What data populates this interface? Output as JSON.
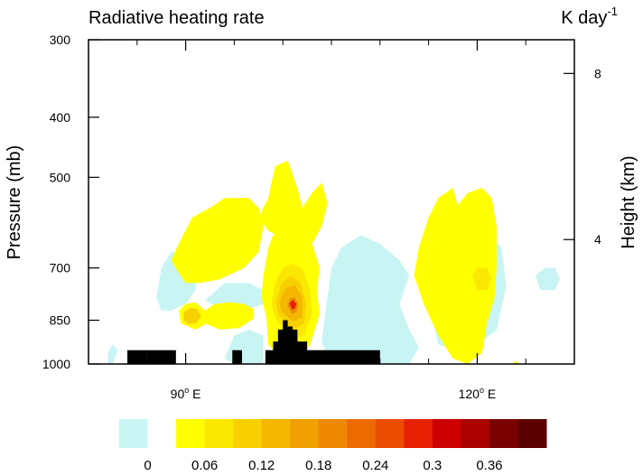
{
  "chart_data": {
    "type": "heatmap",
    "title": "Radiative heating rate",
    "units_label": "K day",
    "units_exponent": "-1",
    "ylabel_left": "Pressure (mb)",
    "ylabel_right": "Height (km)",
    "y_scale": "log",
    "y_range_mb": [
      1000,
      300
    ],
    "x_range_deg": [
      80,
      130
    ],
    "x_ticks": [
      {
        "lon": 90,
        "label": "90",
        "suffix": "E"
      },
      {
        "lon": 120,
        "label": "120",
        "suffix": "E"
      }
    ],
    "x_minor_ticks": [
      85,
      95,
      100,
      105,
      110,
      115,
      125,
      130
    ],
    "left_ticks": [
      {
        "value": 300,
        "label": "300"
      },
      {
        "value": 400,
        "label": "400"
      },
      {
        "value": 500,
        "label": "500"
      },
      {
        "value": 700,
        "label": "700"
      },
      {
        "value": 850,
        "label": "850"
      },
      {
        "value": 1000,
        "label": "1000"
      }
    ],
    "right_ticks": [
      {
        "pressure_mb": 340,
        "label": "8"
      },
      {
        "pressure_mb": 630,
        "label": "4"
      }
    ],
    "colorbar": {
      "colors": [
        "#c8f4f4",
        "#ffffff",
        "#ffff00",
        "#fbe800",
        "#f8d000",
        "#f4b800",
        "#f0a000",
        "#ee8800",
        "#ec6a00",
        "#ea4c00",
        "#e62000",
        "#cc0000",
        "#aa0000",
        "#7a0000",
        "#5a0000"
      ],
      "labels": [
        "0",
        "0.06",
        "0.12",
        "0.18",
        "0.24",
        "0.3",
        "0.36"
      ],
      "label_boundaries": [
        1,
        3,
        5,
        7,
        9,
        11,
        13
      ]
    },
    "regions": [
      {
        "level": 0,
        "points": [
          [
            82.5,
            1000
          ],
          [
            83,
            950
          ],
          [
            82.5,
            930
          ],
          [
            82,
            960
          ],
          [
            82,
            1000
          ]
        ]
      },
      {
        "level": 0,
        "points": [
          [
            87,
            780
          ],
          [
            87.5,
            700
          ],
          [
            88.5,
            660
          ],
          [
            90,
            660
          ],
          [
            91,
            700
          ],
          [
            91,
            760
          ],
          [
            90,
            800
          ],
          [
            88.5,
            820
          ],
          [
            87.5,
            820
          ]
        ]
      },
      {
        "level": 0,
        "points": [
          [
            92,
            790
          ],
          [
            94,
            740
          ],
          [
            96.5,
            740
          ],
          [
            98,
            760
          ],
          [
            98,
            800
          ],
          [
            96,
            820
          ],
          [
            94,
            820
          ]
        ]
      },
      {
        "level": 0,
        "points": [
          [
            94,
            980
          ],
          [
            95,
            900
          ],
          [
            96.5,
            880
          ],
          [
            98,
            900
          ],
          [
            98,
            1000
          ],
          [
            95,
            1000
          ]
        ]
      },
      {
        "level": 0,
        "points": [
          [
            104.5,
            800
          ],
          [
            105,
            700
          ],
          [
            106,
            650
          ],
          [
            108,
            620
          ],
          [
            110,
            640
          ],
          [
            112,
            680
          ],
          [
            113,
            720
          ],
          [
            112,
            800
          ],
          [
            113,
            880
          ],
          [
            114,
            940
          ],
          [
            113,
            1000
          ],
          [
            105,
            1000
          ],
          [
            104,
            920
          ]
        ]
      },
      {
        "level": 0,
        "points": [
          [
            116,
            760
          ],
          [
            118,
            640
          ],
          [
            121,
            610
          ],
          [
            122.5,
            650
          ],
          [
            123,
            750
          ],
          [
            122,
            880
          ],
          [
            119,
            960
          ],
          [
            116,
            930
          ],
          [
            115.5,
            860
          ]
        ]
      },
      {
        "level": 0,
        "points": [
          [
            126,
            720
          ],
          [
            127,
            700
          ],
          [
            128,
            700
          ],
          [
            128.5,
            730
          ],
          [
            128,
            760
          ],
          [
            126.5,
            760
          ]
        ]
      },
      {
        "level": 2,
        "points": [
          [
            89.2,
            710
          ],
          [
            88.5,
            680
          ],
          [
            89.5,
            630
          ],
          [
            90.7,
            580
          ],
          [
            92.5,
            560
          ],
          [
            94,
            540
          ],
          [
            96.5,
            540
          ],
          [
            97.5,
            560
          ],
          [
            98,
            600
          ],
          [
            97.5,
            660
          ],
          [
            96,
            700
          ],
          [
            93.5,
            730
          ],
          [
            91.5,
            740
          ],
          [
            90,
            740
          ]
        ]
      },
      {
        "level": 2,
        "points": [
          [
            98.3,
            840
          ],
          [
            97.8,
            780
          ],
          [
            98,
            720
          ],
          [
            98.5,
            650
          ],
          [
            99.5,
            590
          ],
          [
            100.5,
            555
          ],
          [
            101.5,
            550
          ],
          [
            102.5,
            580
          ],
          [
            103,
            640
          ],
          [
            103.8,
            700
          ],
          [
            103.5,
            760
          ],
          [
            103.8,
            830
          ],
          [
            102.8,
            930
          ],
          [
            101.5,
            990
          ],
          [
            100,
            990
          ],
          [
            98.5,
            930
          ]
        ]
      },
      {
        "level": 2,
        "points": [
          [
            97.5,
            580
          ],
          [
            98.5,
            540
          ],
          [
            99.2,
            480
          ],
          [
            100.5,
            470
          ],
          [
            101.5,
            520
          ],
          [
            102,
            560
          ],
          [
            103,
            530
          ],
          [
            104,
            510
          ],
          [
            104.6,
            550
          ],
          [
            104,
            600
          ],
          [
            103,
            640
          ],
          [
            101.5,
            620
          ],
          [
            99.5,
            620
          ],
          [
            98.5,
            610
          ]
        ]
      },
      {
        "level": 2,
        "points": [
          [
            92,
            820
          ],
          [
            93,
            800
          ],
          [
            94.5,
            795
          ],
          [
            96,
            800
          ],
          [
            97,
            815
          ],
          [
            97,
            845
          ],
          [
            95.5,
            875
          ],
          [
            93.5,
            880
          ],
          [
            92,
            860
          ]
        ]
      },
      {
        "level": 2,
        "points": [
          [
            113.5,
            720
          ],
          [
            114,
            650
          ],
          [
            115,
            580
          ],
          [
            116,
            540
          ],
          [
            117.5,
            520
          ],
          [
            118,
            555
          ],
          [
            119,
            530
          ],
          [
            120.5,
            520
          ],
          [
            121.5,
            540
          ],
          [
            122,
            600
          ],
          [
            122,
            700
          ],
          [
            121.8,
            780
          ],
          [
            121,
            860
          ],
          [
            120.5,
            960
          ],
          [
            119,
            1000
          ],
          [
            117.5,
            980
          ],
          [
            116,
            900
          ],
          [
            114.5,
            800
          ]
        ]
      },
      {
        "level": 3,
        "points": [
          [
            99.2,
            840
          ],
          [
            98.8,
            800
          ],
          [
            99.2,
            740
          ],
          [
            100,
            700
          ],
          [
            101,
            690
          ],
          [
            102,
            700
          ],
          [
            102.8,
            760
          ],
          [
            103,
            830
          ],
          [
            102.2,
            900
          ],
          [
            100.5,
            910
          ]
        ]
      },
      {
        "level": 4,
        "points": [
          [
            99.5,
            830
          ],
          [
            99.3,
            790
          ],
          [
            99.9,
            740
          ],
          [
            100.8,
            720
          ],
          [
            101.8,
            740
          ],
          [
            102.4,
            800
          ],
          [
            102.2,
            860
          ],
          [
            101,
            880
          ]
        ]
      },
      {
        "level": 5,
        "points": [
          [
            99.8,
            820
          ],
          [
            99.7,
            790
          ],
          [
            100.3,
            755
          ],
          [
            101.2,
            745
          ],
          [
            102,
            780
          ],
          [
            102,
            840
          ],
          [
            101,
            855
          ]
        ]
      },
      {
        "level": 2,
        "points": [
          [
            89.5,
            860
          ],
          [
            89.3,
            820
          ],
          [
            90,
            800
          ],
          [
            91,
            795
          ],
          [
            92,
            820
          ],
          [
            92.2,
            860
          ],
          [
            91,
            880
          ]
        ]
      },
      {
        "level": 4,
        "points": [
          [
            89.8,
            850
          ],
          [
            89.8,
            825
          ],
          [
            90.5,
            812
          ],
          [
            91.2,
            815
          ],
          [
            91.6,
            840
          ],
          [
            91,
            860
          ],
          [
            90.3,
            862
          ]
        ]
      },
      {
        "level": 5,
        "points": [
          [
            100.2,
            815
          ],
          [
            100.3,
            790
          ],
          [
            100.8,
            770
          ],
          [
            101.5,
            775
          ],
          [
            101.8,
            810
          ],
          [
            101.3,
            840
          ],
          [
            100.6,
            840
          ]
        ]
      },
      {
        "level": 7,
        "points": [
          [
            100.5,
            805
          ],
          [
            100.7,
            785
          ],
          [
            101.2,
            780
          ],
          [
            101.6,
            800
          ],
          [
            101.4,
            825
          ],
          [
            100.9,
            830
          ]
        ]
      },
      {
        "level": 10,
        "points": [
          [
            100.7,
            798
          ],
          [
            101,
            788
          ],
          [
            101.4,
            800
          ],
          [
            101.2,
            815
          ],
          [
            100.9,
            815
          ]
        ]
      },
      {
        "level": 3,
        "points": [
          [
            119.5,
            720
          ],
          [
            120,
            700
          ],
          [
            121,
            700
          ],
          [
            121.5,
            730
          ],
          [
            121,
            760
          ],
          [
            120,
            760
          ]
        ]
      },
      {
        "level": 2,
        "points": [
          [
            123.5,
            1000
          ],
          [
            124,
            990
          ],
          [
            124.5,
            1000
          ]
        ]
      }
    ],
    "topography": [
      {
        "lon": [
          84,
          86
        ],
        "p_top": 950
      },
      {
        "lon": [
          86,
          89
        ],
        "p_top": 950
      },
      {
        "lon": [
          94.8,
          95.8
        ],
        "p_top": 950
      },
      {
        "lon": [
          98.2,
          101
        ],
        "p_top": 950
      },
      {
        "lon": [
          99,
          100
        ],
        "p_top": 920
      },
      {
        "lon": [
          100,
          100.5
        ],
        "p_top": 850
      },
      {
        "lon": [
          100.5,
          101
        ],
        "p_top": 870
      },
      {
        "lon": [
          101,
          101.5
        ],
        "p_top": 900
      },
      {
        "lon": [
          99.5,
          101.5
        ],
        "p_top": 880
      },
      {
        "lon": [
          101,
          102.5
        ],
        "p_top": 920
      },
      {
        "lon": [
          102,
          110
        ],
        "p_top": 950
      }
    ]
  }
}
